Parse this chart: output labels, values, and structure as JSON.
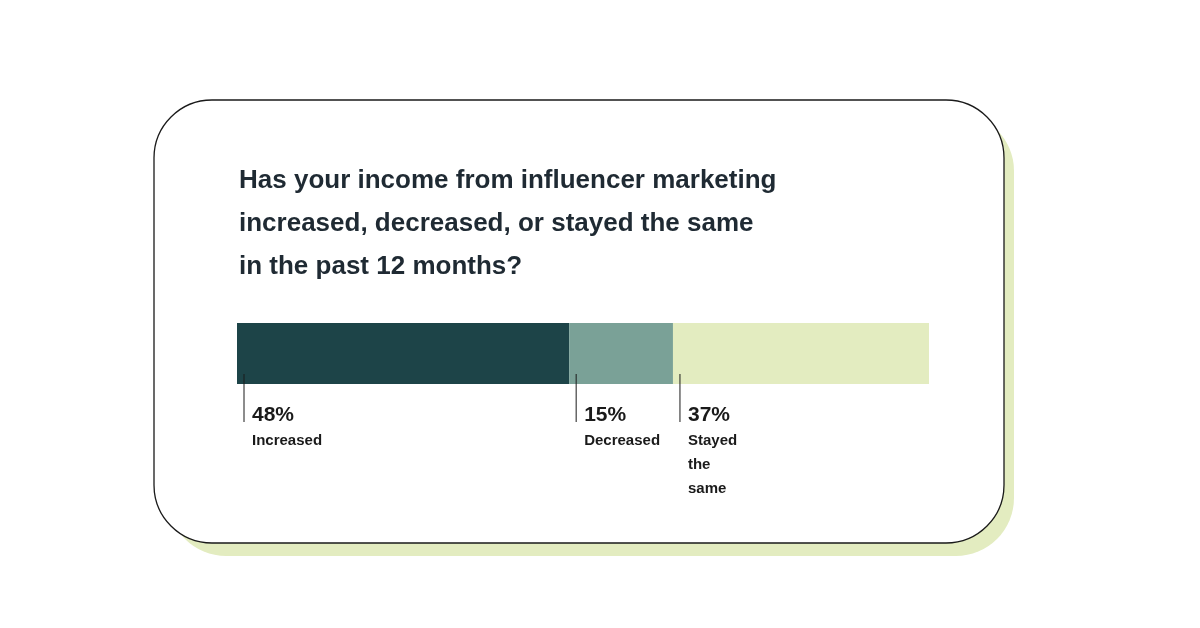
{
  "chart_data": {
    "type": "bar",
    "orientation": "horizontal",
    "stacked": true,
    "title": "Has your income from influencer marketing increased, decreased, or stayed the same in the past 12 months?",
    "categories": [
      null
    ],
    "series": [
      {
        "name": "Increased",
        "color": "#1d4448",
        "values": [
          48
        ],
        "value_labels": [
          "48%"
        ]
      },
      {
        "name": "Decreased",
        "color": "#7aa197",
        "values": [
          15
        ],
        "value_labels": [
          "15%"
        ]
      },
      {
        "name": "Stayed the same",
        "color": "#e3ecc0",
        "values": [
          37
        ],
        "value_labels": [
          "37%"
        ]
      }
    ]
  }
}
